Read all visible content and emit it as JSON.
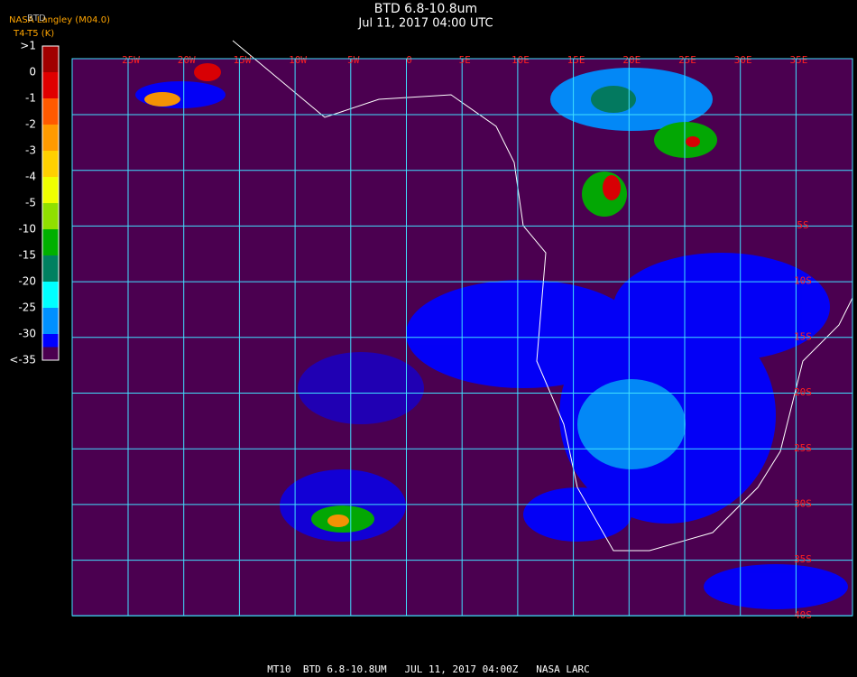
{
  "header": {
    "title": "BTD 6.8-10.8um",
    "subtitle": "Jul 11, 2017 04:00 UTC",
    "source": "NASA Langley (M04.0)",
    "product": "BTD",
    "units": "T4-T5 (K)"
  },
  "colorbar": {
    "labels": [
      ">1",
      "0",
      "-1",
      "-2",
      "-3",
      "-4",
      "-5",
      "-10",
      "-15",
      "-20",
      "-25",
      "-30",
      "<-35"
    ],
    "colors": [
      "#a00000",
      "#e00000",
      "#ff5a00",
      "#ff9a00",
      "#ffd000",
      "#f0ff00",
      "#90e000",
      "#00b000",
      "#008060",
      "#00ffff",
      "#0090ff",
      "#0000ff"
    ]
  },
  "map": {
    "lon_labels": [
      "25W",
      "20W",
      "15W",
      "10W",
      "5W",
      "0",
      "5E",
      "10E",
      "15E",
      "20E",
      "25E",
      "30E",
      "35E"
    ],
    "lat_labels": [
      "5S",
      "10S",
      "15S",
      "20S",
      "25S",
      "30S",
      "35S",
      "40S"
    ]
  },
  "footer": {
    "caption": "MT10  BTD 6.8-10.8UM   JUL 11, 2017 04:00Z   NASA LARC"
  }
}
